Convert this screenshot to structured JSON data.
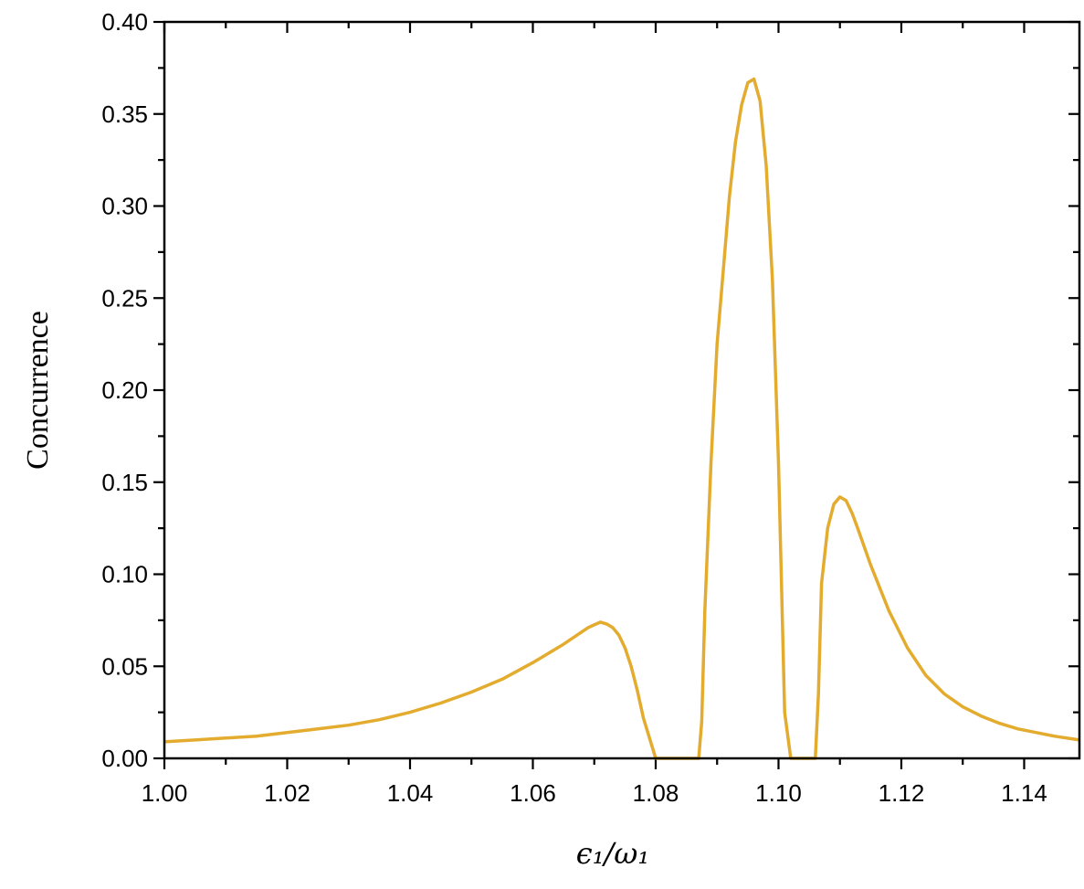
{
  "chart_data": {
    "type": "line",
    "title": "",
    "xlabel": "ϵ₁/ω₁",
    "ylabel": "Concurrence",
    "xlim": [
      1.0,
      1.149
    ],
    "ylim": [
      0.0,
      0.4
    ],
    "x_ticks": [
      "1.00",
      "1.02",
      "1.04",
      "1.06",
      "1.08",
      "1.10",
      "1.12",
      "1.14"
    ],
    "y_ticks": [
      "0.00",
      "0.05",
      "0.10",
      "0.15",
      "0.20",
      "0.25",
      "0.30",
      "0.35",
      "0.40"
    ],
    "grid": false,
    "line_color": "#E3AC2F",
    "series": [
      {
        "x": [
          1.0,
          1.005,
          1.01,
          1.015,
          1.02,
          1.025,
          1.03,
          1.035,
          1.04,
          1.045,
          1.05,
          1.055,
          1.06,
          1.065,
          1.069,
          1.071,
          1.072,
          1.073,
          1.074,
          1.075,
          1.076,
          1.077,
          1.078,
          1.08,
          1.0805,
          1.087,
          1.0875,
          1.088,
          1.089,
          1.09,
          1.091,
          1.092,
          1.093,
          1.094,
          1.095,
          1.096,
          1.097,
          1.098,
          1.099,
          1.1,
          1.101,
          1.102,
          1.103,
          1.1035,
          1.106,
          1.1065,
          1.107,
          1.108,
          1.109,
          1.11,
          1.111,
          1.112,
          1.113,
          1.115,
          1.118,
          1.121,
          1.124,
          1.127,
          1.13,
          1.133,
          1.136,
          1.139,
          1.142,
          1.145,
          1.149
        ],
        "y": [
          0.009,
          0.01,
          0.011,
          0.012,
          0.014,
          0.016,
          0.018,
          0.021,
          0.025,
          0.03,
          0.036,
          0.043,
          0.052,
          0.062,
          0.071,
          0.074,
          0.073,
          0.071,
          0.067,
          0.06,
          0.05,
          0.037,
          0.022,
          0.0,
          0.0,
          0.0,
          0.02,
          0.08,
          0.16,
          0.225,
          0.265,
          0.305,
          0.335,
          0.355,
          0.367,
          0.369,
          0.357,
          0.322,
          0.26,
          0.16,
          0.025,
          0.0,
          0.0,
          0.0,
          0.0,
          0.035,
          0.095,
          0.125,
          0.138,
          0.142,
          0.14,
          0.133,
          0.124,
          0.105,
          0.08,
          0.06,
          0.045,
          0.035,
          0.028,
          0.023,
          0.019,
          0.016,
          0.014,
          0.012,
          0.01
        ]
      }
    ]
  }
}
